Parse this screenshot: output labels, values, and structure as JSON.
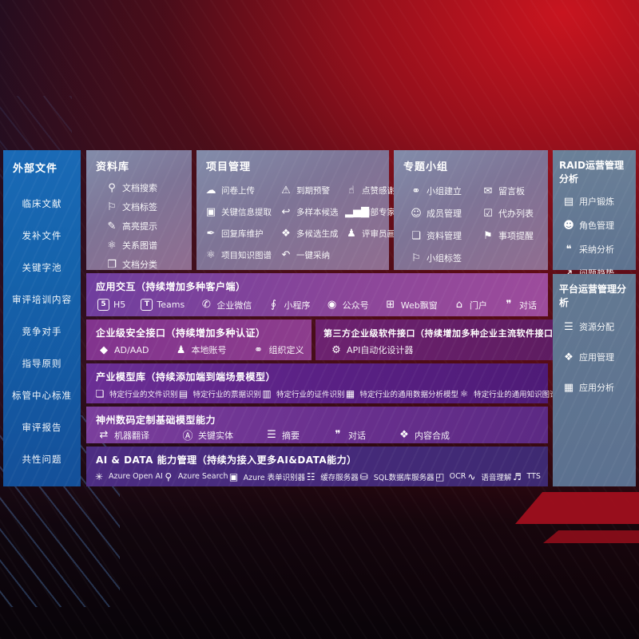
{
  "left_sidebar": {
    "title": "外部文件",
    "items": [
      "临床文献",
      "发补文件",
      "关键字池",
      "审评培训内容",
      "竞争对手",
      "指导原则",
      "标管中心标准",
      "审评报告",
      "共性问题"
    ]
  },
  "library": {
    "title": "资料库",
    "items": [
      {
        "label": "文档搜索",
        "icon": "doc-search-icon",
        "glyph": "⚲"
      },
      {
        "label": "文档标签",
        "icon": "doc-tag-icon",
        "glyph": "⚐"
      },
      {
        "label": "高亮提示",
        "icon": "highlight-icon",
        "glyph": "✎"
      },
      {
        "label": "关系图谱",
        "icon": "relation-graph-icon",
        "glyph": "⚛"
      },
      {
        "label": "文档分类",
        "icon": "doc-classify-icon",
        "glyph": "❐"
      }
    ]
  },
  "project": {
    "title": "项目管理",
    "items": [
      {
        "label": "问卷上传",
        "icon": "upload-icon",
        "glyph": "☁"
      },
      {
        "label": "到期预警",
        "icon": "due-alert-icon",
        "glyph": "⚠"
      },
      {
        "label": "点赞感谢",
        "icon": "thumbs-up-icon",
        "glyph": "☝"
      },
      {
        "label": "关键信息提取",
        "icon": "info-extract-icon",
        "glyph": "▣"
      },
      {
        "label": "多样本候选",
        "icon": "multi-sample-icon",
        "glyph": "↩"
      },
      {
        "label": "内部专家排名",
        "icon": "expert-ranking-icon",
        "glyph": "▂▅▇"
      },
      {
        "label": "回复库维护",
        "icon": "reply-maintain-icon",
        "glyph": "✒"
      },
      {
        "label": "多候选生成",
        "icon": "multi-generate-icon",
        "glyph": "❖"
      },
      {
        "label": "评审员画像",
        "icon": "reviewer-profile-icon",
        "glyph": "♟"
      },
      {
        "label": "项目知识图谱",
        "icon": "knowledge-graph-icon",
        "glyph": "⚛"
      },
      {
        "label": "一键采纳",
        "icon": "one-click-adopt-icon",
        "glyph": "↶"
      }
    ]
  },
  "group": {
    "title": "专题小组",
    "items": [
      {
        "label": "小组建立",
        "icon": "group-create-icon",
        "glyph": "⚭"
      },
      {
        "label": "留言板",
        "icon": "message-board-icon",
        "glyph": "✉"
      },
      {
        "label": "成员管理",
        "icon": "member-manage-icon",
        "glyph": "☺"
      },
      {
        "label": "代办列表",
        "icon": "todo-list-icon",
        "glyph": "☑"
      },
      {
        "label": "资料管理",
        "icon": "material-manage-icon",
        "glyph": "❏"
      },
      {
        "label": "事项提醒",
        "icon": "reminder-icon",
        "glyph": "⚑"
      },
      {
        "label": "小组标签",
        "icon": "group-tag-icon",
        "glyph": "⚐"
      }
    ]
  },
  "raid": {
    "title": "RAID运营管理分析",
    "items": [
      {
        "label": "用户锻炼",
        "icon": "user-card-icon",
        "glyph": "▤"
      },
      {
        "label": "角色管理",
        "icon": "role-manage-icon",
        "glyph": "☻"
      },
      {
        "label": "采纳分析",
        "icon": "adoption-analysis-icon",
        "glyph": "❝"
      },
      {
        "label": "问题趋势",
        "icon": "issue-trend-icon",
        "glyph": "↗"
      }
    ]
  },
  "platform": {
    "title": "平台运营管理分析",
    "items": [
      {
        "label": "资源分配",
        "icon": "resource-allocation-icon",
        "glyph": "☰"
      },
      {
        "label": "应用管理",
        "icon": "app-manage-icon",
        "glyph": "❖"
      },
      {
        "label": "应用分析",
        "icon": "app-analysis-icon",
        "glyph": "▦"
      }
    ]
  },
  "interaction": {
    "title": "应用交互（持续增加多种客户端）",
    "items": [
      {
        "label": "H5",
        "icon": "h5-icon",
        "glyph": "5",
        "box": true
      },
      {
        "label": "Teams",
        "icon": "teams-icon",
        "glyph": "T",
        "box": true
      },
      {
        "label": "企业微信",
        "icon": "wechat-work-icon",
        "glyph": "✆"
      },
      {
        "label": "小程序",
        "icon": "mini-program-icon",
        "glyph": "∮"
      },
      {
        "label": "公众号",
        "icon": "official-account-icon",
        "glyph": "◉"
      },
      {
        "label": "Web飘窗",
        "icon": "web-popup-icon",
        "glyph": "⊞"
      },
      {
        "label": "门户",
        "icon": "portal-icon",
        "glyph": "⌂"
      },
      {
        "label": "对话",
        "icon": "chat-icon",
        "glyph": "❞"
      }
    ]
  },
  "security": {
    "title": "企业级安全接口（持续增加多种认证）",
    "items": [
      {
        "label": "AD/AAD",
        "icon": "ad-aad-icon",
        "glyph": "◆"
      },
      {
        "label": "本地账号",
        "icon": "local-account-icon",
        "glyph": "♟"
      },
      {
        "label": "组织定义",
        "icon": "org-define-icon",
        "glyph": "⚭"
      }
    ]
  },
  "thirdparty": {
    "title": "第三方企业级软件接口（持续增加多种企业主流软件接口）",
    "items": [
      {
        "label": "API自动化设计器",
        "icon": "api-designer-icon",
        "glyph": "⚙"
      }
    ]
  },
  "models": {
    "title": "产业模型库（持续添加端到端场景模型）",
    "items": [
      {
        "label": "特定行业的文件识别",
        "icon": "file-recognition-icon",
        "glyph": "❏"
      },
      {
        "label": "特定行业的票据识别",
        "icon": "receipt-recognition-icon",
        "glyph": "▤"
      },
      {
        "label": "特定行业的证件识别",
        "icon": "id-recognition-icon",
        "glyph": "▥"
      },
      {
        "label": "特定行业的通用数据分析模型",
        "icon": "data-analysis-model-icon",
        "glyph": "▦"
      },
      {
        "label": "特定行业的通用知识图谱模型",
        "icon": "knowledge-graph-model-icon",
        "glyph": "⚛"
      }
    ]
  },
  "foundation": {
    "title": "神州数码定制基础模型能力",
    "items": [
      {
        "label": "机器翻译",
        "icon": "machine-translation-icon",
        "glyph": "⇄"
      },
      {
        "label": "关键实体",
        "icon": "key-entity-icon",
        "glyph": "Ⓐ"
      },
      {
        "label": "摘要",
        "icon": "summary-icon",
        "glyph": "☰"
      },
      {
        "label": "对话",
        "icon": "dialogue-icon",
        "glyph": "❞"
      },
      {
        "label": "内容合成",
        "icon": "content-synthesis-icon",
        "glyph": "❖"
      }
    ]
  },
  "aidata": {
    "title": "AI & DATA 能力管理（持续为接入更多AI&DATA能力）",
    "items": [
      {
        "label": "Azure Open AI",
        "icon": "azure-openai-icon",
        "glyph": "✳"
      },
      {
        "label": "Azure Search",
        "icon": "azure-search-icon",
        "glyph": "⚲"
      },
      {
        "label": "Azure 表单识别器",
        "icon": "azure-form-recognizer-icon",
        "glyph": "▣"
      },
      {
        "label": "缓存服务器",
        "icon": "cache-server-icon",
        "glyph": "☷"
      },
      {
        "label": "SQL数据库服务器",
        "icon": "sql-database-icon",
        "glyph": "⛁"
      },
      {
        "label": "OCR",
        "icon": "ocr-icon",
        "glyph": "◰"
      },
      {
        "label": "语音理解",
        "icon": "speech-understanding-icon",
        "glyph": "∿"
      },
      {
        "label": "TTS",
        "icon": "tts-icon",
        "glyph": "♬"
      }
    ]
  },
  "colors": {
    "background_red": "#c8141f",
    "chevron_red": "#a30f1d",
    "left_sidebar_blue": "#1563ac",
    "top_panel_gray_purple": "#7e7496",
    "right_panel_slate": "#5e7390",
    "interaction_purple": "#8a4699",
    "security_magenta": "#82348e",
    "thirdparty_dark_magenta": "#6d2270",
    "models_purple": "#5a2185",
    "foundation_purple": "#69308e",
    "aidata_indigo": "#452a7a",
    "text": "#ffffff"
  }
}
